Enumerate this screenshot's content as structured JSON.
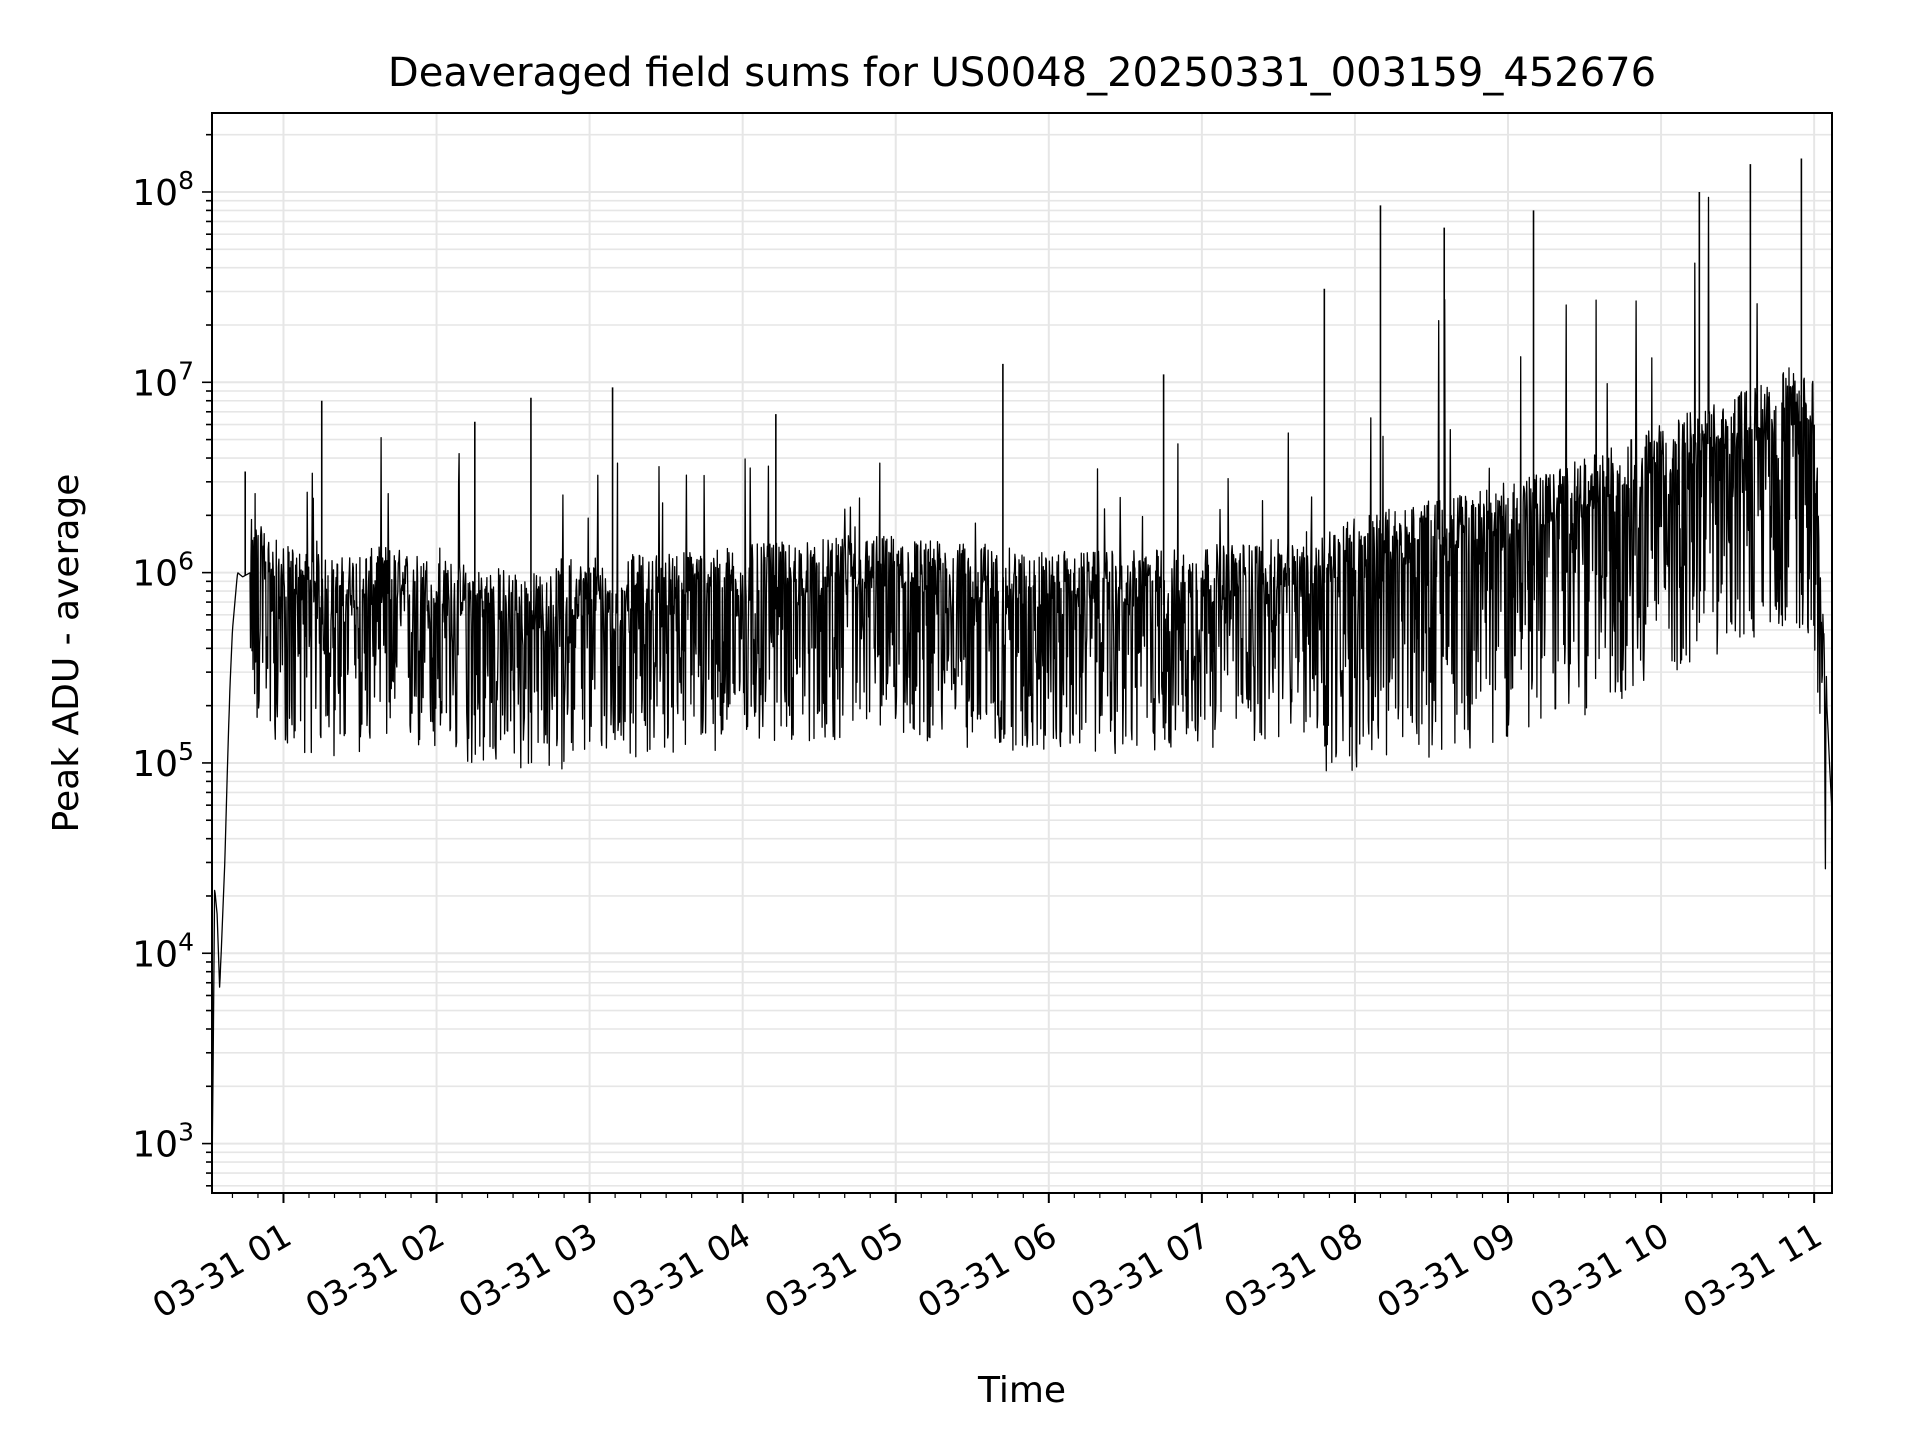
{
  "chart_data": {
    "type": "line",
    "title": "Deaveraged field sums for US0048_20250331_003159_452676",
    "xlabel": "Time",
    "ylabel": "Peak ADU - average",
    "y_scale": "log",
    "ylim": [
      550,
      260000000
    ],
    "xlim": [
      "2025-03-31 00:31:59",
      "2025-03-31 11:07:00"
    ],
    "grid": true,
    "line_color": "#000000",
    "grid_color": "#e6e6e6",
    "x_ticks": [
      {
        "value": "2025-03-31 01:00",
        "label": "03-31 01"
      },
      {
        "value": "2025-03-31 02:00",
        "label": "03-31 02"
      },
      {
        "value": "2025-03-31 03:00",
        "label": "03-31 03"
      },
      {
        "value": "2025-03-31 04:00",
        "label": "03-31 04"
      },
      {
        "value": "2025-03-31 05:00",
        "label": "03-31 05"
      },
      {
        "value": "2025-03-31 06:00",
        "label": "03-31 06"
      },
      {
        "value": "2025-03-31 07:00",
        "label": "03-31 07"
      },
      {
        "value": "2025-03-31 08:00",
        "label": "03-31 08"
      },
      {
        "value": "2025-03-31 09:00",
        "label": "03-31 09"
      },
      {
        "value": "2025-03-31 10:00",
        "label": "03-31 10"
      },
      {
        "value": "2025-03-31 11:00",
        "label": "03-31 11"
      }
    ],
    "y_ticks": [
      {
        "value": 1000,
        "base": "10",
        "exp": "3"
      },
      {
        "value": 10000,
        "base": "10",
        "exp": "4"
      },
      {
        "value": 100000,
        "base": "10",
        "exp": "5"
      },
      {
        "value": 1000000,
        "base": "10",
        "exp": "6"
      },
      {
        "value": 10000000,
        "base": "10",
        "exp": "7"
      },
      {
        "value": 100000000,
        "base": "10",
        "exp": "8"
      }
    ],
    "series": [
      {
        "x": [
          "2025-03-31 00:32",
          "2025-03-31 00:33",
          "2025-03-31 00:34",
          "2025-03-31 00:35",
          "2025-03-31 00:36",
          "2025-03-31 00:37",
          "2025-03-31 00:38",
          "2025-03-31 00:39",
          "2025-03-31 00:40",
          "2025-03-31 00:42",
          "2025-03-31 00:44",
          "2025-03-31 00:47",
          "2025-03-31 00:50",
          "2025-03-31 00:55",
          "2025-03-31 01:00",
          "2025-03-31 01:10",
          "2025-03-31 01:20",
          "2025-03-31 01:30",
          "2025-03-31 01:40",
          "2025-03-31 02:00",
          "2025-03-31 02:20",
          "2025-03-31 02:40",
          "2025-03-31 03:00",
          "2025-03-31 03:30",
          "2025-03-31 04:00",
          "2025-03-31 04:30",
          "2025-03-31 05:00",
          "2025-03-31 05:30",
          "2025-03-31 06:00",
          "2025-03-31 06:30",
          "2025-03-31 07:00",
          "2025-03-31 07:30",
          "2025-03-31 07:50",
          "2025-03-31 08:00",
          "2025-03-31 08:30",
          "2025-03-31 09:00",
          "2025-03-31 09:30",
          "2025-03-31 10:00",
          "2025-03-31 10:20",
          "2025-03-31 10:40",
          "2025-03-31 10:50",
          "2025-03-31 11:00",
          "2025-03-31 11:03",
          "2025-03-31 11:05",
          "2025-03-31 11:06",
          "2025-03-31 11:07"
        ],
        "y": [
          600,
          22000,
          16000,
          6500,
          14000,
          30000,
          90000,
          250000,
          500000,
          1000000,
          950000,
          1000000,
          900000,
          800000,
          700000,
          650000,
          600000,
          650000,
          700000,
          600000,
          550000,
          500000,
          600000,
          650000,
          700000,
          750000,
          800000,
          700000,
          650000,
          650000,
          700000,
          750000,
          900000,
          1000000,
          1200000,
          1500000,
          2000000,
          3000000,
          4000000,
          5000000,
          6000000,
          5000000,
          600000,
          200000,
          100000,
          55000
        ]
      }
    ],
    "annotations": [
      {
        "x": "2025-03-31 00:45",
        "y": 3400000
      },
      {
        "x": "2025-03-31 01:15",
        "y": 8000000
      },
      {
        "x": "2025-03-31 02:15",
        "y": 6200000
      },
      {
        "x": "2025-03-31 02:37",
        "y": 8300000
      },
      {
        "x": "2025-03-31 03:09",
        "y": 9400000
      },
      {
        "x": "2025-03-31 04:13",
        "y": 6800000
      },
      {
        "x": "2025-03-31 05:42",
        "y": 12500000
      },
      {
        "x": "2025-03-31 06:45",
        "y": 11000000
      },
      {
        "x": "2025-03-31 07:48",
        "y": 31000000
      },
      {
        "x": "2025-03-31 08:10",
        "y": 85000000
      },
      {
        "x": "2025-03-31 08:35",
        "y": 65000000
      },
      {
        "x": "2025-03-31 09:10",
        "y": 80000000
      },
      {
        "x": "2025-03-31 10:15",
        "y": 100000000
      },
      {
        "x": "2025-03-31 10:35",
        "y": 140000000
      },
      {
        "x": "2025-03-31 10:55",
        "y": 150000000
      }
    ]
  }
}
